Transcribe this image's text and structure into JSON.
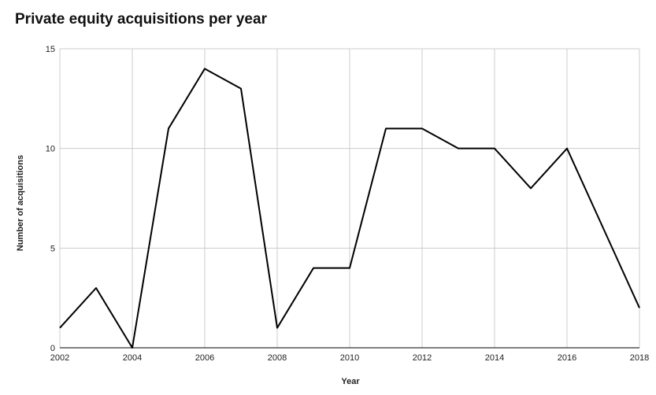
{
  "chart_data": {
    "type": "line",
    "title": "Private equity acquisitions per year",
    "xlabel": "Year",
    "ylabel": "Number of acquisitions",
    "x": [
      2002,
      2003,
      2004,
      2005,
      2006,
      2007,
      2008,
      2009,
      2010,
      2011,
      2012,
      2013,
      2014,
      2015,
      2016,
      2017,
      2018
    ],
    "series": [
      {
        "values": [
          1,
          3,
          0,
          11,
          14,
          13,
          1,
          4,
          4,
          11,
          11,
          10,
          10,
          8,
          10,
          6,
          2
        ]
      }
    ],
    "xlim": [
      2002,
      2018
    ],
    "ylim": [
      0,
      15
    ],
    "x_ticks": [
      "2002",
      "2004",
      "2006",
      "2008",
      "2010",
      "2012",
      "2014",
      "2016",
      "2018"
    ],
    "y_ticks": [
      "0",
      "5",
      "10",
      "15"
    ],
    "grid": true,
    "colors": {
      "line": "#000000",
      "grid": "#cccccc",
      "baseline": "#333333"
    }
  }
}
